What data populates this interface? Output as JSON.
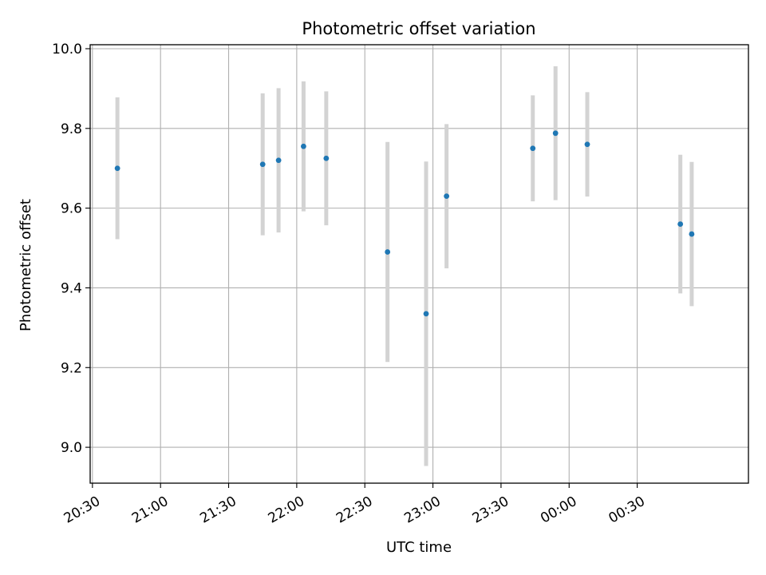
{
  "chart_data": {
    "type": "scatter",
    "title": "Photometric offset variation",
    "xlabel": "UTC time",
    "ylabel": "Photometric offset",
    "grid": true,
    "ylim": [
      8.91,
      10.01
    ],
    "xlim": [
      "20:29",
      "01:19"
    ],
    "yticks": [
      "9.0",
      "9.2",
      "9.4",
      "9.6",
      "9.8",
      "10.0"
    ],
    "xticks": [
      "20:30",
      "21:00",
      "21:30",
      "22:00",
      "22:30",
      "23:00",
      "23:30",
      "00:00",
      "00:30"
    ],
    "point_color": "#1f77b4",
    "errorbar_color": "#d3d3d3",
    "points": [
      {
        "time": "20:41",
        "y": 9.7,
        "err": 0.178
      },
      {
        "time": "21:45",
        "y": 9.71,
        "err": 0.178
      },
      {
        "time": "21:52",
        "y": 9.72,
        "err": 0.181
      },
      {
        "time": "22:03",
        "y": 9.755,
        "err": 0.163
      },
      {
        "time": "22:13",
        "y": 9.725,
        "err": 0.168
      },
      {
        "time": "22:40",
        "y": 9.49,
        "err": 0.276
      },
      {
        "time": "22:57",
        "y": 9.335,
        "err": 0.382
      },
      {
        "time": "23:06",
        "y": 9.63,
        "err": 0.181
      },
      {
        "time": "23:44",
        "y": 9.75,
        "err": 0.133
      },
      {
        "time": "23:54",
        "y": 9.788,
        "err": 0.168
      },
      {
        "time": "00:08",
        "y": 9.76,
        "err": 0.131
      },
      {
        "time": "00:49",
        "y": 9.56,
        "err": 0.174
      },
      {
        "time": "00:54",
        "y": 9.535,
        "err": 0.181
      }
    ]
  }
}
